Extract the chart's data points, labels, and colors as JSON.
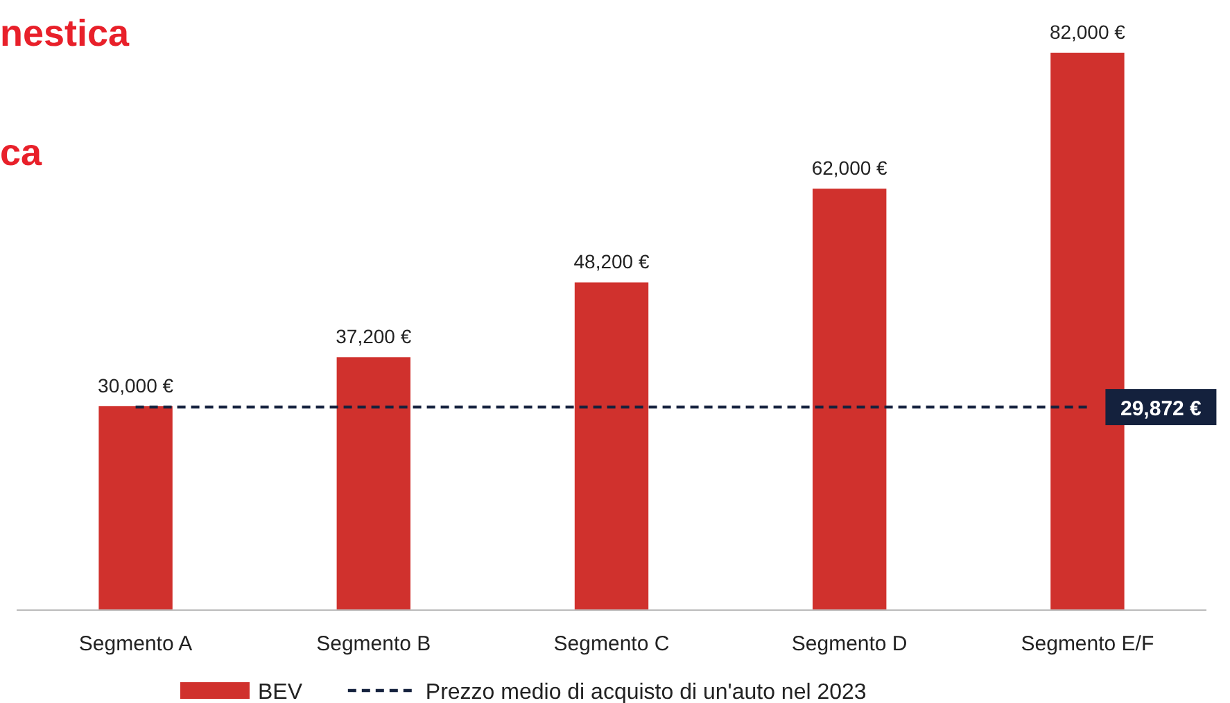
{
  "chart_data": {
    "type": "bar",
    "categories": [
      "Segmento A",
      "Segmento B",
      "Segmento C",
      "Segmento D",
      "Segmento E/F"
    ],
    "series": [
      {
        "name": "BEV",
        "color": "#d0312d",
        "values": [
          30000,
          37200,
          48200,
          62000,
          82000
        ],
        "value_labels": [
          "30,000 €",
          "37,200 €",
          "48,200 €",
          "62,000 €",
          "82,000 €"
        ]
      },
      {
        "name": "Prezzo medio di acquisto di un'auto nel 2023",
        "type": "line",
        "color": "#14213d",
        "line_style": "dashed",
        "marker": "none",
        "values": [
          29872,
          29872,
          29872,
          29872,
          29872
        ]
      }
    ],
    "ylim": [
      0,
      82000
    ],
    "tick_labels": "x",
    "legend": "bottom",
    "annotations": [
      "nestica",
      "ca",
      "29,872 €"
    ]
  }
}
